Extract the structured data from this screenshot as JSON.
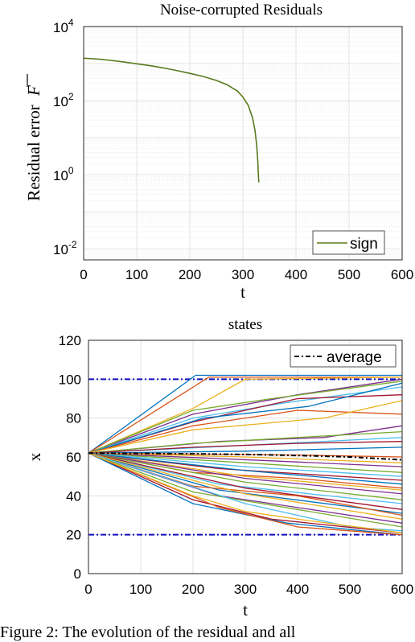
{
  "chart_data": [
    {
      "type": "line",
      "title": "Noise-corrupted Residuals",
      "xlabel": "t",
      "ylabel": "Residual error",
      "ylabel_symbol": "F",
      "xlim": [
        0,
        600
      ],
      "ylim": [
        0.005,
        10000
      ],
      "yscale": "log",
      "xticks": [
        "0",
        "100",
        "200",
        "300",
        "400",
        "500",
        "600"
      ],
      "yticks": [
        {
          "base": "10",
          "exp": "-2",
          "value": 0.01
        },
        {
          "base": "10",
          "exp": "0",
          "value": 1
        },
        {
          "base": "10",
          "exp": "2",
          "value": 100
        },
        {
          "base": "10",
          "exp": "4",
          "value": 10000
        }
      ],
      "grid": true,
      "legend": {
        "position": "bottom-right",
        "entries": [
          "sign"
        ]
      },
      "series": [
        {
          "name": "sign",
          "color": "#5a7a1e",
          "x": [
            0,
            25,
            50,
            75,
            100,
            125,
            150,
            175,
            200,
            225,
            250,
            270,
            290,
            300,
            310,
            318,
            323,
            326,
            328,
            329,
            330
          ],
          "y": [
            1400,
            1330,
            1220,
            1110,
            985,
            880,
            765,
            650,
            545,
            450,
            350,
            270,
            180,
            125,
            75,
            35,
            15,
            6,
            2.4,
            1.2,
            0.62
          ]
        }
      ]
    },
    {
      "type": "line",
      "title": "states",
      "xlabel": "t",
      "ylabel": "x",
      "xlim": [
        0,
        600
      ],
      "ylim": [
        0,
        120
      ],
      "xticks": [
        "0",
        "100",
        "200",
        "300",
        "400",
        "500",
        "600"
      ],
      "yticks": [
        "0",
        "20",
        "40",
        "60",
        "80",
        "100",
        "120"
      ],
      "grid": true,
      "legend": {
        "position": "top-right",
        "entries": [
          "average"
        ]
      },
      "bounds": {
        "upper": 100,
        "lower": 20,
        "color": "#1010c0"
      },
      "average": {
        "name": "average",
        "color": "#000000",
        "x": [
          0,
          100,
          200,
          300,
          400,
          500,
          600
        ],
        "y": [
          62,
          61.8,
          61.6,
          61.3,
          60.8,
          60,
          58.5
        ]
      },
      "palette": [
        "#0072bd",
        "#d95319",
        "#edb120",
        "#7e2f8e",
        "#77ac30",
        "#4dbeee",
        "#a2142f"
      ],
      "series": [
        {
          "x": [
            0,
            205,
            600
          ],
          "y": [
            62,
            102,
            102
          ]
        },
        {
          "x": [
            0,
            230,
            600
          ],
          "y": [
            62,
            101,
            101
          ]
        },
        {
          "x": [
            0,
            200,
            300,
            600
          ],
          "y": [
            62,
            85,
            100,
            101
          ]
        },
        {
          "x": [
            0,
            200,
            400,
            600
          ],
          "y": [
            62,
            82,
            92,
            100
          ]
        },
        {
          "x": [
            0,
            200,
            350,
            600
          ],
          "y": [
            62,
            84,
            90,
            99
          ]
        },
        {
          "x": [
            0,
            200,
            380,
            600
          ],
          "y": [
            62,
            80,
            88,
            96
          ]
        },
        {
          "x": [
            0,
            200,
            400,
            600
          ],
          "y": [
            62,
            78,
            90,
            92
          ]
        },
        {
          "x": [
            0,
            220,
            420,
            600
          ],
          "y": [
            62,
            80,
            86,
            98
          ]
        },
        {
          "x": [
            0,
            200,
            400,
            600
          ],
          "y": [
            62,
            76,
            84,
            82
          ]
        },
        {
          "x": [
            0,
            200,
            450,
            600
          ],
          "y": [
            62,
            74,
            80,
            89
          ]
        },
        {
          "x": [
            0,
            250,
            450,
            600
          ],
          "y": [
            62,
            68,
            70,
            76
          ]
        },
        {
          "x": [
            0,
            200,
            400,
            600
          ],
          "y": [
            62,
            67,
            70,
            73
          ]
        },
        {
          "x": [
            0,
            300,
            600
          ],
          "y": [
            62,
            66,
            70
          ]
        },
        {
          "x": [
            0,
            200,
            400,
            600
          ],
          "y": [
            62,
            65,
            67,
            68
          ]
        },
        {
          "x": [
            0,
            300,
            600
          ],
          "y": [
            62,
            63,
            65
          ]
        },
        {
          "x": [
            0,
            400,
            600
          ],
          "y": [
            62,
            61,
            60
          ]
        },
        {
          "x": [
            0,
            300,
            600
          ],
          "y": [
            62,
            60,
            57
          ]
        },
        {
          "x": [
            0,
            350,
            600
          ],
          "y": [
            62,
            58,
            55
          ]
        },
        {
          "x": [
            0,
            300,
            600
          ],
          "y": [
            62,
            57,
            52
          ]
        },
        {
          "x": [
            0,
            300,
            600
          ],
          "y": [
            62,
            55,
            50
          ]
        },
        {
          "x": [
            0,
            250,
            600
          ],
          "y": [
            62,
            54,
            48
          ]
        },
        {
          "x": [
            0,
            300,
            600
          ],
          "y": [
            62,
            53,
            46
          ]
        },
        {
          "x": [
            0,
            200,
            400,
            600
          ],
          "y": [
            62,
            52,
            49,
            44
          ]
        },
        {
          "x": [
            0,
            300,
            600
          ],
          "y": [
            62,
            50,
            43
          ]
        },
        {
          "x": [
            0,
            300,
            600
          ],
          "y": [
            62,
            49,
            41
          ]
        },
        {
          "x": [
            0,
            300,
            600
          ],
          "y": [
            62,
            47,
            38
          ]
        },
        {
          "x": [
            0,
            250,
            600
          ],
          "y": [
            62,
            46,
            36
          ]
        },
        {
          "x": [
            0,
            300,
            600
          ],
          "y": [
            62,
            44,
            33
          ]
        },
        {
          "x": [
            0,
            250,
            600
          ],
          "y": [
            62,
            43,
            31
          ]
        },
        {
          "x": [
            0,
            200,
            400,
            600
          ],
          "y": [
            62,
            45,
            40,
            30
          ]
        },
        {
          "x": [
            0,
            300,
            600
          ],
          "y": [
            62,
            41,
            28
          ]
        },
        {
          "x": [
            0,
            250,
            600
          ],
          "y": [
            62,
            40,
            26
          ]
        },
        {
          "x": [
            0,
            200,
            400,
            600
          ],
          "y": [
            62,
            42,
            33,
            24
          ]
        },
        {
          "x": [
            0,
            300,
            500,
            600
          ],
          "y": [
            62,
            36,
            24,
            22
          ]
        },
        {
          "x": [
            0,
            200,
            350,
            600
          ],
          "y": [
            62,
            38,
            28,
            21
          ]
        },
        {
          "x": [
            0,
            200,
            380,
            600
          ],
          "y": [
            62,
            36,
            26,
            20
          ]
        },
        {
          "x": [
            0,
            250,
            400,
            600
          ],
          "y": [
            62,
            34,
            24,
            20
          ]
        },
        {
          "x": [
            0,
            200,
            300,
            400,
            600
          ],
          "y": [
            62,
            40,
            32,
            28,
            21
          ]
        }
      ]
    }
  ],
  "caption": {
    "text": "Figure 2:  The evolution of the residual and all"
  }
}
